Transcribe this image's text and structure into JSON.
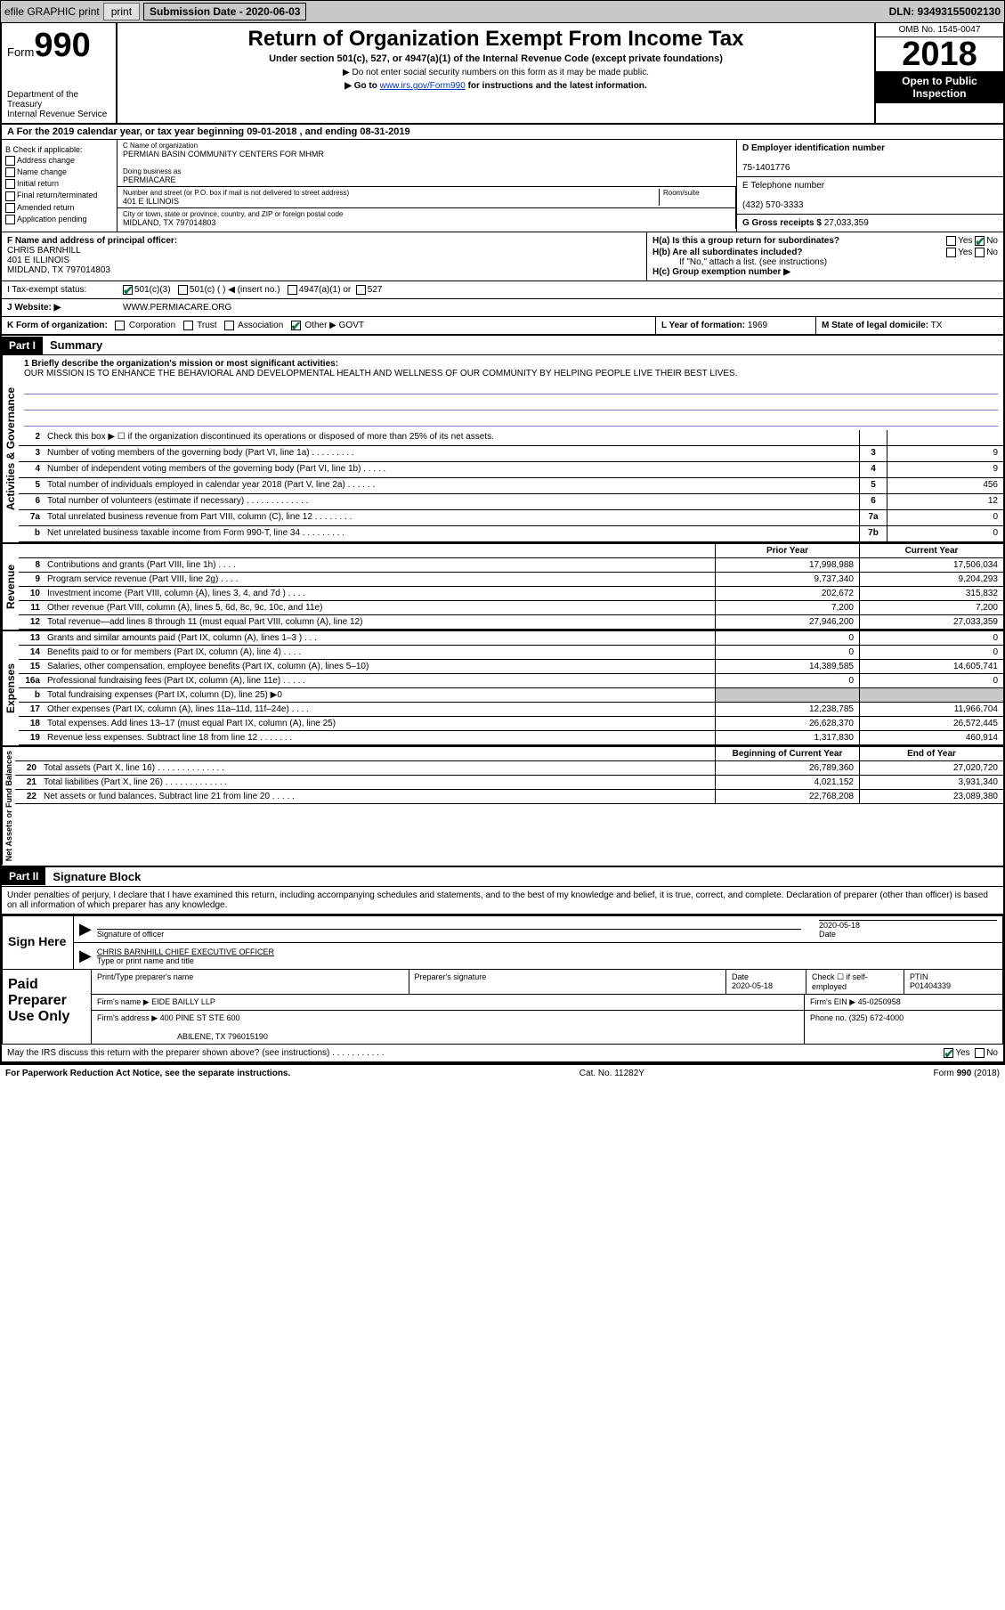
{
  "topbar": {
    "efile": "efile GRAPHIC print",
    "submission_label": "Submission Date - 2020-06-03",
    "dln": "DLN: 93493155002130"
  },
  "header": {
    "form_prefix": "Form",
    "form_num": "990",
    "dept": "Department of the Treasury\nInternal Revenue Service",
    "title": "Return of Organization Exempt From Income Tax",
    "subtitle": "Under section 501(c), 527, or 4947(a)(1) of the Internal Revenue Code (except private foundations)",
    "note1": "▶ Do not enter social security numbers on this form as it may be made public.",
    "note2_pre": "▶ Go to ",
    "note2_link": "www.irs.gov/Form990",
    "note2_post": " for instructions and the latest information.",
    "omb": "OMB No. 1545-0047",
    "year": "2018",
    "inspect": "Open to Public Inspection"
  },
  "rowA": "A For the 2019 calendar year, or tax year beginning 09-01-2018    , and ending 08-31-2019",
  "colB": {
    "title": "B Check if applicable:",
    "items": [
      "Address change",
      "Name change",
      "Initial return",
      "Final return/terminated",
      "Amended return",
      "Application pending"
    ]
  },
  "colC": {
    "name_lbl": "C Name of organization",
    "name": "PERMIAN BASIN COMMUNITY CENTERS FOR MHMR",
    "dba_lbl": "Doing business as",
    "dba": "PERMIACARE",
    "street_lbl": "Number and street (or P.O. box if mail is not delivered to street address)",
    "room_lbl": "Room/suite",
    "street": "401 E ILLINOIS",
    "city_lbl": "City or town, state or province, country, and ZIP or foreign postal code",
    "city": "MIDLAND, TX  797014803"
  },
  "colD": {
    "lbl": "D Employer identification number",
    "val": "75-1401776"
  },
  "colE": {
    "lbl": "E Telephone number",
    "val": "(432) 570-3333"
  },
  "colG": {
    "lbl": "G Gross receipts $",
    "val": "27,033,359"
  },
  "colF": {
    "lbl": "F  Name and address of principal officer:",
    "name": "CHRIS BARNHILL",
    "street": "401 E ILLINOIS",
    "city": "MIDLAND, TX  797014803"
  },
  "colH": {
    "a": "H(a)  Is this a group return for subordinates?",
    "b": "H(b)  Are all subordinates included?",
    "b_note": "If \"No,\" attach a list. (see instructions)",
    "c": "H(c)  Group exemption number ▶"
  },
  "rowI": {
    "lbl": "I    Tax-exempt status:",
    "opts": [
      "501(c)(3)",
      "501(c) (  ) ◀ (insert no.)",
      "4947(a)(1) or",
      "527"
    ]
  },
  "rowJ": {
    "lbl": "J    Website: ▶",
    "val": "WWW.PERMIACARE.ORG"
  },
  "rowK": {
    "lbl": "K Form of organization:",
    "opts": [
      "Corporation",
      "Trust",
      "Association",
      "Other ▶"
    ],
    "other": "GOVT"
  },
  "rowL": {
    "lbl": "L Year of formation:",
    "val": "1969"
  },
  "rowM": {
    "lbl": "M State of legal domicile:",
    "val": "TX"
  },
  "parts": {
    "p1": "Part I",
    "p1t": "Summary",
    "p2": "Part II",
    "p2t": "Signature Block"
  },
  "sidebars": {
    "ag": "Activities & Governance",
    "rev": "Revenue",
    "exp": "Expenses",
    "na": "Net Assets or Fund Balances"
  },
  "mission": {
    "lbl": "1  Briefly describe the organization's mission or most significant activities:",
    "txt": "OUR MISSION IS TO ENHANCE THE BEHAVIORAL AND DEVELOPMENTAL HEALTH AND WELLNESS OF OUR COMMUNITY BY HELPING PEOPLE LIVE THEIR BEST LIVES."
  },
  "gov_lines": [
    {
      "n": "2",
      "t": "Check this box ▶ ☐  if the organization discontinued its operations or disposed of more than 25% of its net assets.",
      "box": "",
      "v": ""
    },
    {
      "n": "3",
      "t": "Number of voting members of the governing body (Part VI, line 1a)  .    .    .    .    .    .    .    .    .",
      "box": "3",
      "v": "9"
    },
    {
      "n": "4",
      "t": "Number of independent voting members of the governing body (Part VI, line 1b)  .    .    .    .    .",
      "box": "4",
      "v": "9"
    },
    {
      "n": "5",
      "t": "Total number of individuals employed in calendar year 2018 (Part V, line 2a)  .    .    .    .    .    .",
      "box": "5",
      "v": "456"
    },
    {
      "n": "6",
      "t": "Total number of volunteers (estimate if necessary)    .    .    .    .    .    .    .    .    .    .    .    .    .",
      "box": "6",
      "v": "12"
    },
    {
      "n": "7a",
      "t": "Total unrelated business revenue from Part VIII, column (C), line 12  .    .    .    .    .    .    .    .",
      "box": "7a",
      "v": "0"
    },
    {
      "n": "b",
      "t": "Net unrelated business taxable income from Form 990-T, line 34    .    .    .    .    .    .    .    .    .",
      "box": "7b",
      "v": "0"
    }
  ],
  "col_hdrs": {
    "prior": "Prior Year",
    "current": "Current Year",
    "beg": "Beginning of Current Year",
    "end": "End of Year"
  },
  "rev_lines": [
    {
      "n": "8",
      "t": "Contributions and grants (Part VIII, line 1h)    .    .    .    .",
      "c1": "17,998,988",
      "c2": "17,506,034"
    },
    {
      "n": "9",
      "t": "Program service revenue (Part VIII, line 2g)    .    .    .    .",
      "c1": "9,737,340",
      "c2": "9,204,293"
    },
    {
      "n": "10",
      "t": "Investment income (Part VIII, column (A), lines 3, 4, and 7d )    .    .    .    .",
      "c1": "202,672",
      "c2": "315,832"
    },
    {
      "n": "11",
      "t": "Other revenue (Part VIII, column (A), lines 5, 6d, 8c, 9c, 10c, and 11e)",
      "c1": "7,200",
      "c2": "7,200"
    },
    {
      "n": "12",
      "t": "Total revenue—add lines 8 through 11 (must equal Part VIII, column (A), line 12)",
      "c1": "27,946,200",
      "c2": "27,033,359"
    }
  ],
  "exp_lines": [
    {
      "n": "13",
      "t": "Grants and similar amounts paid (Part IX, column (A), lines 1–3 )  .    .    .",
      "c1": "0",
      "c2": "0"
    },
    {
      "n": "14",
      "t": "Benefits paid to or for members (Part IX, column (A), line 4)  .    .    .    .",
      "c1": "0",
      "c2": "0"
    },
    {
      "n": "15",
      "t": "Salaries, other compensation, employee benefits (Part IX, column (A), lines 5–10)",
      "c1": "14,389,585",
      "c2": "14,605,741"
    },
    {
      "n": "16a",
      "t": "Professional fundraising fees (Part IX, column (A), line 11e)  .    .    .    .    .",
      "c1": "0",
      "c2": "0"
    },
    {
      "n": "b",
      "t": "Total fundraising expenses (Part IX, column (D), line 25) ▶0",
      "c1": "grey",
      "c2": "grey"
    },
    {
      "n": "17",
      "t": "Other expenses (Part IX, column (A), lines 11a–11d, 11f–24e)  .    .    .    .",
      "c1": "12,238,785",
      "c2": "11,966,704"
    },
    {
      "n": "18",
      "t": "Total expenses. Add lines 13–17 (must equal Part IX, column (A), line 25)",
      "c1": "26,628,370",
      "c2": "26,572,445"
    },
    {
      "n": "19",
      "t": "Revenue less expenses. Subtract line 18 from line 12  .    .    .    .    .    .    .",
      "c1": "1,317,830",
      "c2": "460,914"
    }
  ],
  "na_lines": [
    {
      "n": "20",
      "t": "Total assets (Part X, line 16)  .    .    .    .    .    .    .    .    .    .    .    .    .    .",
      "c1": "26,789,360",
      "c2": "27,020,720"
    },
    {
      "n": "21",
      "t": "Total liabilities (Part X, line 26)  .    .    .    .    .    .    .    .    .    .    .    .    .",
      "c1": "4,021,152",
      "c2": "3,931,340"
    },
    {
      "n": "22",
      "t": "Net assets or fund balances. Subtract line 21 from line 20  .    .    .    .    .",
      "c1": "22,768,208",
      "c2": "23,089,380"
    }
  ],
  "penalty": "Under penalties of perjury, I declare that I have examined this return, including accompanying schedules and statements, and to the best of my knowledge and belief, it is true, correct, and complete. Declaration of preparer (other than officer) is based on all information of which preparer has any knowledge.",
  "sign": {
    "here": "Sign Here",
    "sig_lbl": "Signature of officer",
    "date_lbl": "Date",
    "date": "2020-05-18",
    "name": "CHRIS BARNHILL  CHIEF EXECUTIVE OFFICER",
    "name_lbl": "Type or print name and title"
  },
  "prep": {
    "title": "Paid Preparer Use Only",
    "r1": {
      "c1": "Print/Type preparer's name",
      "c2": "Preparer's signature",
      "c3_lbl": "Date",
      "c3": "2020-05-18",
      "c4": "Check ☐ if self-employed",
      "c5_lbl": "PTIN",
      "c5": "P01404339"
    },
    "r2": {
      "lbl": "Firm's name     ▶",
      "val": "EIDE BAILLY LLP",
      "ein_lbl": "Firm's EIN ▶",
      "ein": "45-0250958"
    },
    "r3": {
      "lbl": "Firm's address ▶",
      "val": "400 PINE ST STE 600",
      "phone_lbl": "Phone no.",
      "phone": "(325) 672-4000"
    },
    "r3b": "ABILENE, TX  796015190"
  },
  "discuss": "May the IRS discuss this return with the preparer shown above? (see instructions)    .    .    .    .    .    .    .    .    .    .    .",
  "footer": {
    "left": "For Paperwork Reduction Act Notice, see the separate instructions.",
    "mid": "Cat. No. 11282Y",
    "right": "Form 990 (2018)"
  },
  "yesno": {
    "yes": "Yes",
    "no": "No"
  }
}
